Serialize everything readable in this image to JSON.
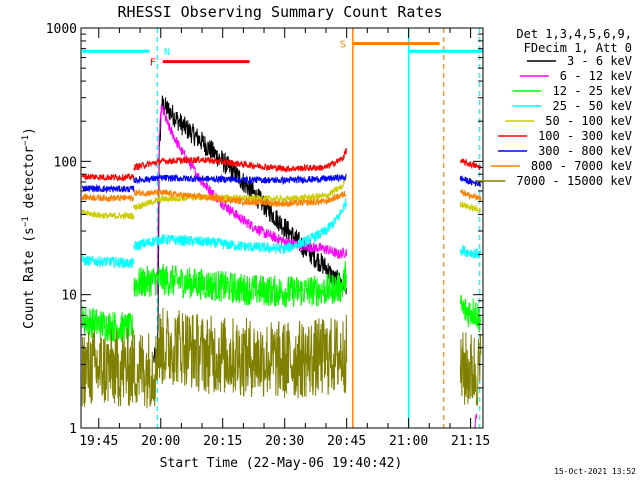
{
  "chart_data": {
    "type": "line",
    "title": "RHESSI Observing Summary Count Rates",
    "xlabel": "Start Time (22-May-06 19:40:42)",
    "ylabel": "Count Rate (s⁻¹ detector⁻¹)",
    "ylabel_main": "Count Rate (s",
    "ylabel_sup1": "−1",
    "ylabel_mid": " detector",
    "ylabel_sup2": "−1",
    "ylabel_end": ")",
    "yscale": "log",
    "xlim_min": [
      40.7,
      138
    ],
    "ylim": [
      1,
      1000
    ],
    "x_ticks": [
      {
        "min": 45,
        "label": "19:45"
      },
      {
        "min": 60,
        "label": "20:00"
      },
      {
        "min": 75,
        "label": "20:15"
      },
      {
        "min": 90,
        "label": "20:30"
      },
      {
        "min": 105,
        "label": "20:45"
      },
      {
        "min": 120,
        "label": "21:00"
      },
      {
        "min": 135,
        "label": "21:15"
      }
    ],
    "y_ticks": [
      {
        "value": 1,
        "label": "1"
      },
      {
        "value": 10,
        "label": "10"
      },
      {
        "value": 100,
        "label": "100"
      },
      {
        "value": 1000,
        "label": "1000"
      }
    ],
    "legend": {
      "position": "top-right",
      "header1": "Det 1,3,4,5,6,9,",
      "header2": "FDecim 1, Att 0",
      "entries": [
        {
          "label": "3 - 6 keV",
          "color": "#000000"
        },
        {
          "label": "6 - 12 keV",
          "color": "#ff00ff"
        },
        {
          "label": "12 - 25 keV",
          "color": "#00ff00"
        },
        {
          "label": "25 - 50 keV",
          "color": "#00ffff"
        },
        {
          "label": "50 - 100 keV",
          "color": "#cccc00"
        },
        {
          "label": "100 - 300 keV",
          "color": "#ff0000"
        },
        {
          "label": "300 - 800 keV",
          "color": "#0000ff"
        },
        {
          "label": "800 - 7000 keV",
          "color": "#ff8000"
        },
        {
          "label": "7000 - 15000 keV",
          "color": "#808000"
        }
      ]
    },
    "series": [
      {
        "name": "3 - 6 keV",
        "color": "#000000",
        "noise": 0.08,
        "segments": [
          [
            [
              58.3,
              3.3
            ],
            [
              59.2,
              3.5
            ],
            [
              59.4,
              8
            ],
            [
              59.6,
              100
            ],
            [
              60.2,
              270
            ],
            [
              62,
              240
            ],
            [
              65,
              190
            ],
            [
              70,
              140
            ],
            [
              75,
              100
            ],
            [
              80,
              70
            ],
            [
              85,
              47
            ],
            [
              90,
              32
            ],
            [
              95,
              22
            ],
            [
              100,
              16
            ],
            [
              102,
              13
            ],
            [
              105,
              12
            ]
          ]
        ]
      },
      {
        "name": "6 - 12 keV",
        "color": "#ff00ff",
        "noise": 0.04,
        "segments": [
          [
            [
              59.2,
              10
            ],
            [
              59.6,
              150
            ],
            [
              60.2,
              255
            ],
            [
              62,
              180
            ],
            [
              65,
              120
            ],
            [
              70,
              70
            ],
            [
              75,
              48
            ],
            [
              80,
              36
            ],
            [
              85,
              29
            ],
            [
              90,
              25
            ],
            [
              95,
              23
            ],
            [
              100,
              22
            ],
            [
              103,
              20
            ],
            [
              105,
              21
            ]
          ],
          [
            [
              136,
              1
            ],
            [
              136.5,
              1.3
            ]
          ]
        ]
      },
      {
        "name": "12 - 25 keV",
        "color": "#00ff00",
        "noise": 0.12,
        "segments": [
          [
            [
              41,
              6.5
            ],
            [
              45,
              6
            ],
            [
              50,
              5.7
            ],
            [
              53,
              5.5
            ],
            [
              53.5,
              5.5
            ]
          ],
          [
            [
              53.5,
              12
            ],
            [
              60,
              13
            ],
            [
              70,
              12
            ],
            [
              80,
              11
            ],
            [
              90,
              10.5
            ],
            [
              100,
              10.8
            ],
            [
              104,
              11.5
            ],
            [
              105,
              15
            ]
          ],
          [
            [
              132.5,
              8
            ],
            [
              134,
              7.5
            ],
            [
              136,
              7.5
            ],
            [
              137.5,
              6.5
            ]
          ]
        ]
      },
      {
        "name": "25 - 50 keV",
        "color": "#00ffff",
        "noise": 0.04,
        "segments": [
          [
            [
              41,
              18
            ],
            [
              50,
              17.5
            ],
            [
              53.5,
              17
            ]
          ],
          [
            [
              53.5,
              23
            ],
            [
              60,
              26
            ],
            [
              70,
              25
            ],
            [
              80,
              23
            ],
            [
              90,
              22
            ],
            [
              95,
              25
            ],
            [
              100,
              30
            ],
            [
              103,
              38
            ],
            [
              105,
              50
            ]
          ],
          [
            [
              132.5,
              22
            ],
            [
              134,
              21
            ],
            [
              137.5,
              20
            ]
          ]
        ]
      },
      {
        "name": "50 - 100 keV",
        "color": "#cccc00",
        "noise": 0.025,
        "segments": [
          [
            [
              41,
              41
            ],
            [
              47,
              39
            ],
            [
              53.5,
              39
            ]
          ],
          [
            [
              53.5,
              45
            ],
            [
              60,
              52
            ],
            [
              70,
              54
            ],
            [
              80,
              53
            ],
            [
              90,
              52
            ],
            [
              100,
              55
            ],
            [
              104,
              65
            ],
            [
              105,
              80
            ]
          ],
          [
            [
              132.5,
              48
            ],
            [
              135,
              45
            ],
            [
              137.5,
              43
            ]
          ]
        ]
      },
      {
        "name": "100 - 300 keV",
        "color": "#ff0000",
        "noise": 0.025,
        "segments": [
          [
            [
              41,
              77
            ],
            [
              47,
              76
            ],
            [
              53.5,
              76
            ]
          ],
          [
            [
              53.5,
              90
            ],
            [
              60,
              100
            ],
            [
              70,
              103
            ],
            [
              80,
              95
            ],
            [
              90,
              88
            ],
            [
              100,
              90
            ],
            [
              104,
              105
            ],
            [
              105,
              122
            ]
          ],
          [
            [
              132.5,
              100
            ],
            [
              135,
              95
            ],
            [
              137.5,
              90
            ]
          ]
        ]
      },
      {
        "name": "300 - 800 keV",
        "color": "#0000ff",
        "noise": 0.025,
        "segments": [
          [
            [
              41,
              63
            ],
            [
              47,
              62
            ],
            [
              53.5,
              62
            ]
          ],
          [
            [
              53.5,
              72
            ],
            [
              60,
              75
            ],
            [
              70,
              74
            ],
            [
              80,
              73
            ],
            [
              90,
              72
            ],
            [
              100,
              74
            ],
            [
              105,
              76
            ]
          ],
          [
            [
              132.5,
              75
            ],
            [
              135,
              70
            ],
            [
              137.5,
              68
            ]
          ]
        ]
      },
      {
        "name": "800 - 7000 keV",
        "color": "#ff8000",
        "noise": 0.025,
        "segments": [
          [
            [
              41,
              54
            ],
            [
              47,
              53
            ],
            [
              53.5,
              53
            ]
          ],
          [
            [
              53.5,
              58
            ],
            [
              60,
              58
            ],
            [
              70,
              54
            ],
            [
              80,
              50
            ],
            [
              90,
              48
            ],
            [
              100,
              50
            ],
            [
              105,
              58
            ]
          ],
          [
            [
              132.5,
              60
            ],
            [
              135,
              55
            ],
            [
              137.5,
              52
            ]
          ]
        ]
      },
      {
        "name": "7000 - 15000 keV",
        "color": "#808000",
        "noise": 0.3,
        "segments": [
          [
            [
              41,
              2.8
            ],
            [
              50,
              2.8
            ],
            [
              59,
              2.8
            ]
          ],
          [
            [
              59,
              4.0
            ],
            [
              65,
              4.2
            ],
            [
              70,
              3.6
            ],
            [
              80,
              3.4
            ],
            [
              90,
              3.2
            ],
            [
              100,
              3.4
            ],
            [
              105,
              3.6
            ]
          ],
          [
            [
              132.5,
              2.7
            ],
            [
              137.5,
              2.7
            ]
          ]
        ]
      }
    ],
    "annotations": {
      "night_cyan": [
        [
          41,
          57.3
        ],
        [
          120,
          138
        ]
      ],
      "saa_orange": [
        [
          106,
          128
        ]
      ],
      "N": {
        "label": "N",
        "x_min": 60.8
      },
      "F": {
        "label": "F",
        "x_range": [
          60.5,
          81.5
        ],
        "y": 560
      },
      "S": {
        "label": "S",
        "x_range": [
          106.5,
          127.5
        ],
        "y": 765
      },
      "night_label_y": 670,
      "vertical_dashed_cyan": [
        59.2,
        137.2
      ],
      "vertical_solid_cyan": [
        120
      ],
      "vertical_solid_orange": [
        106.5
      ],
      "vertical_dashed_orange": [
        128.5
      ]
    }
  },
  "footer_timestamp": "15-Oct-2021 13:52"
}
